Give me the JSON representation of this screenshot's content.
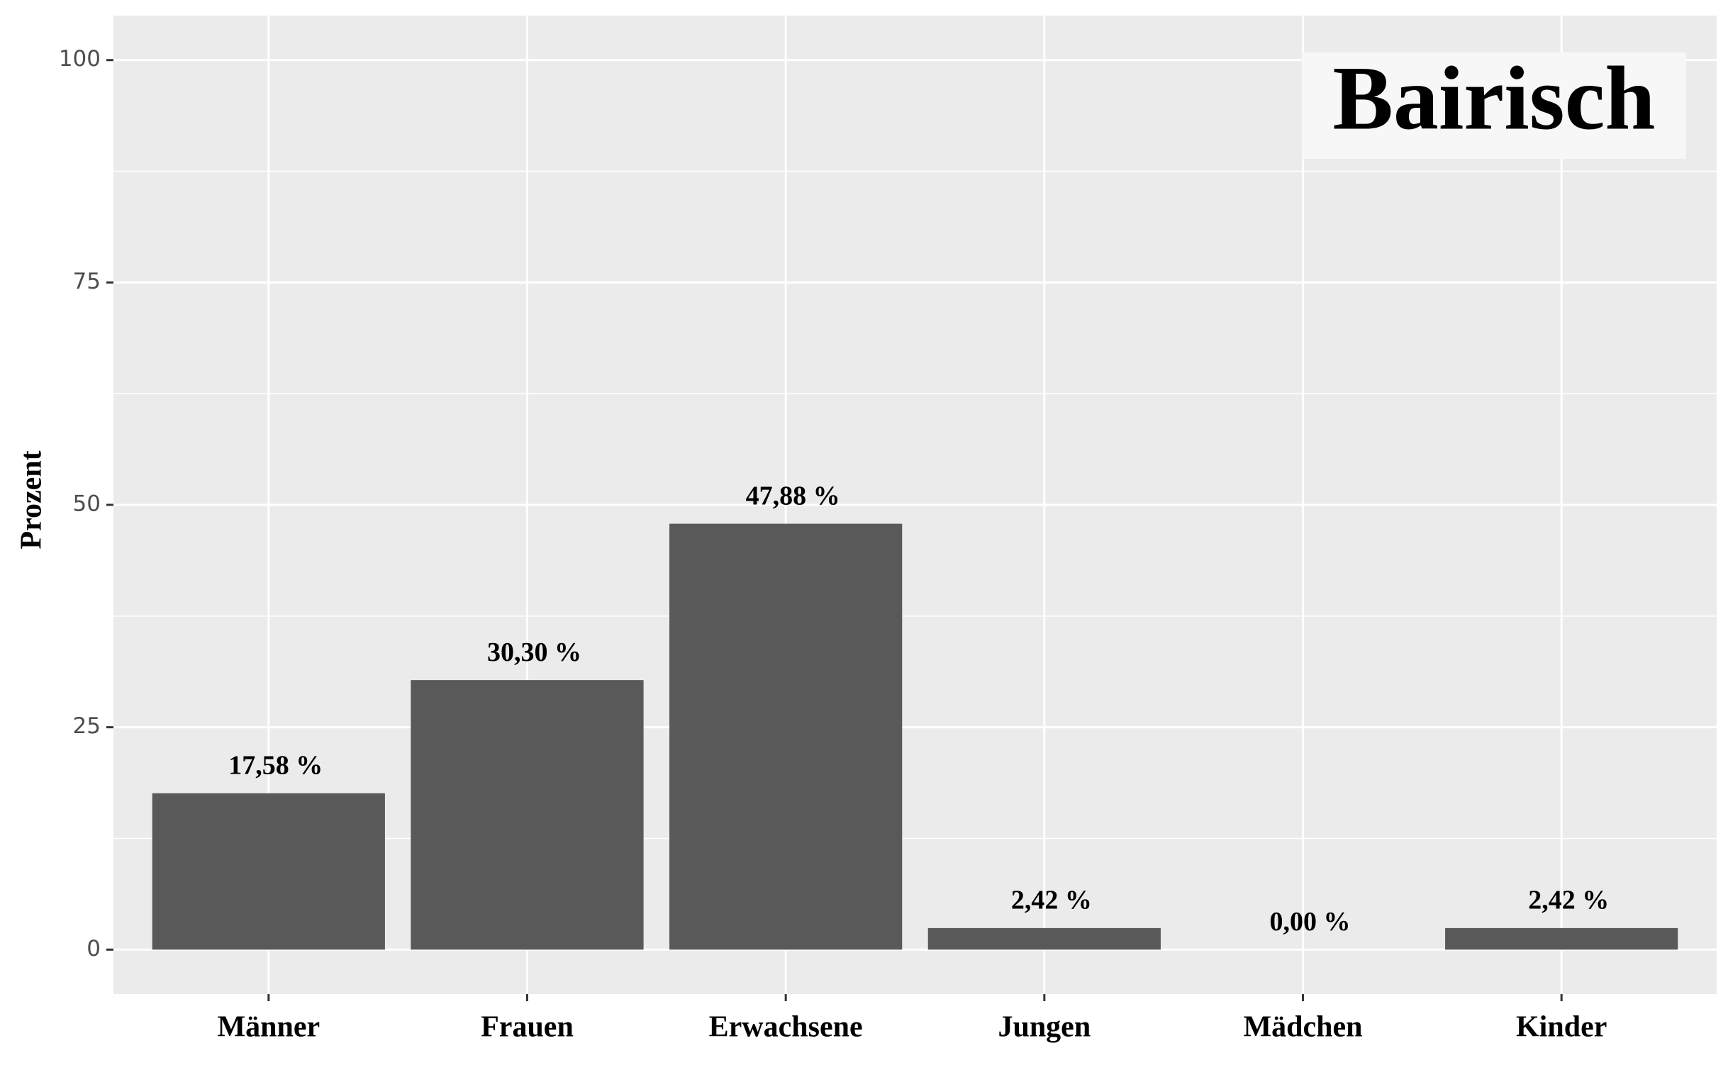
{
  "chart_data": {
    "type": "bar",
    "title": "Bairisch",
    "y_label": "Prozent",
    "categories": [
      "Männer",
      "Frauen",
      "Erwachsene",
      "Jungen",
      "Mädchen",
      "Kinder"
    ],
    "values": [
      17.58,
      30.3,
      47.88,
      2.42,
      0.0,
      2.42
    ],
    "value_labels": [
      "17,58 %",
      "30,30 %",
      "47,88 %",
      "2,42 %",
      "0,00 %",
      "2,42 %"
    ],
    "color": "#595959",
    "ylim": [
      -5,
      105
    ],
    "yticks": [
      0,
      25,
      50,
      75,
      100
    ],
    "grid": true
  }
}
